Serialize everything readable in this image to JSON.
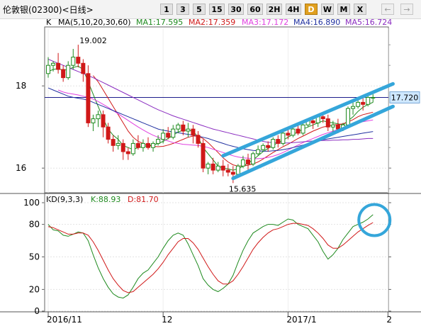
{
  "header": {
    "title": "伦敦银(02300)<日线>",
    "periods": [
      {
        "label": "1",
        "active": false
      },
      {
        "label": "3",
        "active": false
      },
      {
        "label": "5",
        "active": false
      },
      {
        "label": "15",
        "active": false
      },
      {
        "label": "30",
        "active": false
      },
      {
        "label": "60",
        "active": false
      },
      {
        "label": "2H",
        "active": false
      },
      {
        "label": "4H",
        "active": false
      },
      {
        "label": "D",
        "active": true
      },
      {
        "label": "W",
        "active": false
      },
      {
        "label": "M",
        "active": false
      },
      {
        "label": "X",
        "active": false
      }
    ],
    "nav": [
      {
        "icon": "arrow-left-icon",
        "glyph": "←"
      },
      {
        "icon": "arrow-right-icon",
        "glyph": "→"
      }
    ]
  },
  "main_legend": {
    "k_label": "K",
    "ma_params": "MA(5,10,20,30,60)",
    "ma1": "MA1:17.595",
    "ma2": "MA2:17.359",
    "ma3": "MA3:17.172",
    "ma4": "MA4:16.890",
    "ma5": "MA5:16.724"
  },
  "kd_legend": {
    "params": "KD(9,3,3)",
    "k": "K:88.93",
    "d": "D:81.70"
  },
  "colors": {
    "up": "#1e8a1e",
    "down": "#d01818",
    "ma1": "#1e8a1e",
    "ma2": "#d01818",
    "ma3": "#e040e0",
    "ma4": "#2030a0",
    "ma5": "#8a2cc0",
    "channel": "#35a6da",
    "k_line": "#1e8a1e",
    "d_line": "#d01818",
    "price_label_bg": "#cfe8ff",
    "price_line": "#1c1c8c"
  },
  "chart_data": [
    {
      "type": "candlestick",
      "y_ticks": [
        16,
        18
      ],
      "ylim": [
        15.4,
        19.4
      ],
      "x_tick_labels": [
        "2016/11",
        "12",
        "2017/1",
        "2"
      ],
      "x_tick_index": [
        0,
        23,
        48,
        68
      ],
      "max_annotation": {
        "label": "19.002",
        "index": 6,
        "value": 19.002
      },
      "min_annotation": {
        "label": "15.635",
        "index": 37,
        "value": 15.635
      },
      "last_price_label": "17.720",
      "last_price": 17.72,
      "candles": [
        [
          18.3,
          18.7,
          18.5,
          18.2
        ],
        [
          18.5,
          18.6,
          18.55,
          18.35
        ],
        [
          18.55,
          18.8,
          18.4,
          18.3
        ],
        [
          18.4,
          18.5,
          18.2,
          18.1
        ],
        [
          18.2,
          18.6,
          18.5,
          18.15
        ],
        [
          18.5,
          18.9,
          18.7,
          18.4
        ],
        [
          18.7,
          19.002,
          18.55,
          18.45
        ],
        [
          18.55,
          18.65,
          18.3,
          18.1
        ],
        [
          18.3,
          18.5,
          17.1,
          17.0
        ],
        [
          17.1,
          17.3,
          17.2,
          16.9
        ],
        [
          17.2,
          17.4,
          17.3,
          17.0
        ],
        [
          17.3,
          17.4,
          17.0,
          16.75
        ],
        [
          17.0,
          17.1,
          16.7,
          16.6
        ],
        [
          16.7,
          16.8,
          16.55,
          16.4
        ],
        [
          16.55,
          16.8,
          16.6,
          16.45
        ],
        [
          16.6,
          16.7,
          16.4,
          16.2
        ],
        [
          16.4,
          16.5,
          16.35,
          16.2
        ],
        [
          16.35,
          16.7,
          16.6,
          16.3
        ],
        [
          16.6,
          16.8,
          16.5,
          16.45
        ],
        [
          16.5,
          16.7,
          16.6,
          16.4
        ],
        [
          16.6,
          16.75,
          16.5,
          16.45
        ],
        [
          16.5,
          16.65,
          16.6,
          16.4
        ],
        [
          16.6,
          16.8,
          16.7,
          16.55
        ],
        [
          16.7,
          16.95,
          16.85,
          16.6
        ],
        [
          16.85,
          17.0,
          16.75,
          16.7
        ],
        [
          16.75,
          17.05,
          16.95,
          16.7
        ],
        [
          16.95,
          17.1,
          17.05,
          16.85
        ],
        [
          17.05,
          17.15,
          16.9,
          16.8
        ],
        [
          16.9,
          17.1,
          16.95,
          16.75
        ],
        [
          16.95,
          17.05,
          16.8,
          16.6
        ],
        [
          16.8,
          16.9,
          16.6,
          16.5
        ],
        [
          16.6,
          16.7,
          16.0,
          15.9
        ],
        [
          16.0,
          16.15,
          16.1,
          15.85
        ],
        [
          16.1,
          16.25,
          15.95,
          15.85
        ],
        [
          15.95,
          16.15,
          16.05,
          15.9
        ],
        [
          16.05,
          16.2,
          15.95,
          15.8
        ],
        [
          15.95,
          16.1,
          15.9,
          15.8
        ],
        [
          15.9,
          16.05,
          15.85,
          15.635
        ],
        [
          15.85,
          16.1,
          16.05,
          15.8
        ],
        [
          16.05,
          16.3,
          16.2,
          16.0
        ],
        [
          16.2,
          16.35,
          16.1,
          15.95
        ],
        [
          16.1,
          16.4,
          16.35,
          16.05
        ],
        [
          16.35,
          16.55,
          16.45,
          16.3
        ],
        [
          16.45,
          16.6,
          16.55,
          16.4
        ],
        [
          16.55,
          16.65,
          16.5,
          16.4
        ],
        [
          16.5,
          16.75,
          16.7,
          16.45
        ],
        [
          16.7,
          16.8,
          16.6,
          16.5
        ],
        [
          16.6,
          16.9,
          16.85,
          16.55
        ],
        [
          16.85,
          16.95,
          16.8,
          16.7
        ],
        [
          16.8,
          17.0,
          16.95,
          16.75
        ],
        [
          16.95,
          17.05,
          16.85,
          16.8
        ],
        [
          16.85,
          17.1,
          17.05,
          16.8
        ],
        [
          17.05,
          17.2,
          17.15,
          17.0
        ],
        [
          17.15,
          17.25,
          17.1,
          16.95
        ],
        [
          17.1,
          17.3,
          17.25,
          17.0
        ],
        [
          17.25,
          17.35,
          17.2,
          17.1
        ],
        [
          17.2,
          17.3,
          17.0,
          16.9
        ],
        [
          17.0,
          17.15,
          17.05,
          16.85
        ],
        [
          17.05,
          17.2,
          16.95,
          16.85
        ],
        [
          16.95,
          17.1,
          17.05,
          16.9
        ],
        [
          17.05,
          17.5,
          17.45,
          17.0
        ],
        [
          17.45,
          17.6,
          17.5,
          17.3
        ],
        [
          17.5,
          17.7,
          17.6,
          17.45
        ],
        [
          17.6,
          17.75,
          17.55,
          17.4
        ],
        [
          17.55,
          17.8,
          17.72,
          17.5
        ],
        [
          17.72,
          17.8,
          17.72,
          17.6
        ]
      ],
      "ma": [
        {
          "name": "MA1",
          "color_key": "ma1",
          "values": [
            18.35,
            18.4,
            18.42,
            18.38,
            18.4,
            18.45,
            18.48,
            18.4,
            18.1,
            17.8,
            17.5,
            17.2,
            16.95,
            16.8,
            16.7,
            16.55,
            16.5,
            16.45,
            16.5,
            16.52,
            16.55,
            16.56,
            16.6,
            16.65,
            16.72,
            16.8,
            16.88,
            16.92,
            16.92,
            16.9,
            16.75,
            16.5,
            16.35,
            16.2,
            16.05,
            16.0,
            15.98,
            15.95,
            15.98,
            16.05,
            16.12,
            16.2,
            16.3,
            16.4,
            16.48,
            16.55,
            16.62,
            16.68,
            16.75,
            16.82,
            16.88,
            16.95,
            17.0,
            17.05,
            17.1,
            17.15,
            17.12,
            17.1,
            17.08,
            17.05,
            17.15,
            17.25,
            17.38,
            17.48,
            17.55,
            17.6
          ]
        },
        {
          "name": "MA2",
          "color_key": "ma2",
          "values": [
            null,
            null,
            null,
            null,
            null,
            null,
            null,
            null,
            null,
            18.25,
            18.1,
            17.9,
            17.7,
            17.5,
            17.3,
            17.1,
            16.9,
            16.75,
            16.65,
            16.6,
            16.55,
            16.53,
            16.52,
            16.53,
            16.56,
            16.6,
            16.65,
            16.7,
            16.75,
            16.78,
            16.78,
            16.72,
            16.62,
            16.5,
            16.38,
            16.25,
            16.15,
            16.08,
            16.05,
            16.05,
            16.07,
            16.1,
            16.15,
            16.22,
            16.3,
            16.38,
            16.45,
            16.52,
            16.58,
            16.65,
            16.72,
            16.78,
            16.84,
            16.9,
            16.95,
            17.0,
            17.02,
            17.05,
            17.06,
            17.08,
            17.12,
            17.18,
            17.25,
            17.3,
            17.33,
            17.36
          ]
        },
        {
          "name": "MA3",
          "color_key": "ma3",
          "values": [
            null,
            null,
            17.9,
            17.85,
            17.82,
            17.8,
            17.78,
            17.75,
            17.72,
            17.68,
            17.62,
            17.55,
            17.48,
            17.4,
            17.32,
            17.24,
            17.16,
            17.08,
            17.0,
            16.93,
            16.86,
            16.8,
            16.75,
            16.7,
            16.66,
            16.62,
            16.6,
            16.58,
            16.57,
            16.56,
            16.55,
            16.53,
            16.5,
            16.46,
            16.42,
            16.38,
            16.34,
            16.3,
            16.27,
            16.25,
            16.24,
            16.23,
            16.23,
            16.24,
            16.26,
            16.29,
            16.33,
            16.38,
            16.44,
            16.5,
            16.56,
            16.62,
            16.67,
            16.72,
            16.77,
            16.82,
            16.86,
            16.9,
            16.94,
            16.98,
            17.02,
            17.06,
            17.1,
            17.13,
            17.15,
            17.17
          ]
        },
        {
          "name": "MA4",
          "color_key": "ma4",
          "values": [
            17.95,
            17.9,
            17.85,
            17.8,
            17.75,
            17.72,
            17.7,
            17.68,
            17.65,
            17.6,
            17.55,
            17.5,
            17.45,
            17.4,
            17.35,
            17.3,
            17.25,
            17.2,
            17.15,
            17.1,
            17.05,
            17.0,
            16.95,
            16.92,
            16.9,
            16.88,
            16.86,
            16.84,
            16.82,
            16.8,
            16.78,
            16.75,
            16.72,
            16.68,
            16.64,
            16.6,
            16.56,
            16.53,
            16.5,
            16.47,
            16.45,
            16.43,
            16.42,
            16.41,
            16.41,
            16.42,
            16.43,
            16.45,
            16.47,
            16.5,
            16.53,
            16.56,
            16.6,
            16.63,
            16.66,
            16.69,
            16.71,
            16.73,
            16.75,
            16.77,
            16.79,
            16.81,
            16.83,
            16.85,
            16.87,
            16.89
          ]
        },
        {
          "name": "MA5",
          "color_key": "ma5",
          "values": [
            18.65,
            18.6,
            18.55,
            18.5,
            18.45,
            18.4,
            18.35,
            18.3,
            18.25,
            18.2,
            18.14,
            18.08,
            18.02,
            17.96,
            17.9,
            17.84,
            17.78,
            17.72,
            17.66,
            17.6,
            17.54,
            17.48,
            17.42,
            17.37,
            17.32,
            17.27,
            17.23,
            17.19,
            17.15,
            17.11,
            17.07,
            17.03,
            16.99,
            16.95,
            16.92,
            16.89,
            16.86,
            16.83,
            16.8,
            16.77,
            16.74,
            16.71,
            16.68,
            16.65,
            16.63,
            16.62,
            16.61,
            16.61,
            16.61,
            16.62,
            16.63,
            16.64,
            16.65,
            16.66,
            16.66,
            16.67,
            16.67,
            16.68,
            16.68,
            16.69,
            16.69,
            16.7,
            16.7,
            16.71,
            16.72,
            16.72
          ]
        }
      ],
      "channel_upper": [
        [
          35,
          16.3
        ],
        [
          69,
          18.05
        ]
      ],
      "channel_lower": [
        [
          37,
          15.75
        ],
        [
          69,
          17.5
        ]
      ]
    },
    {
      "type": "line",
      "ylim": [
        0,
        100
      ],
      "y_ticks": [
        0,
        20,
        50,
        80,
        100
      ],
      "series": [
        {
          "name": "K",
          "color_key": "k_line",
          "values": [
            80,
            75,
            74,
            70,
            69,
            71,
            73,
            72,
            65,
            52,
            40,
            30,
            22,
            16,
            13,
            12,
            15,
            22,
            30,
            35,
            38,
            44,
            50,
            58,
            65,
            70,
            72,
            70,
            62,
            52,
            42,
            30,
            24,
            20,
            18,
            21,
            25,
            33,
            45,
            56,
            65,
            72,
            75,
            78,
            80,
            80,
            79,
            82,
            85,
            84,
            80,
            78,
            76,
            70,
            64,
            55,
            48,
            52,
            58,
            66,
            72,
            78,
            80,
            82,
            85,
            88.93
          ]
        },
        {
          "name": "D",
          "color_key": "d_line",
          "values": [
            78,
            77,
            75,
            73,
            71,
            71,
            72,
            72,
            70,
            64,
            56,
            47,
            38,
            30,
            24,
            19,
            17,
            18,
            22,
            26,
            30,
            34,
            39,
            45,
            52,
            58,
            64,
            67,
            67,
            63,
            57,
            49,
            41,
            34,
            28,
            25,
            25,
            28,
            34,
            41,
            49,
            57,
            63,
            68,
            72,
            75,
            76,
            78,
            80,
            81,
            81,
            80,
            79,
            76,
            72,
            67,
            61,
            58,
            58,
            61,
            65,
            69,
            73,
            76,
            79,
            81.7
          ]
        }
      ]
    }
  ]
}
